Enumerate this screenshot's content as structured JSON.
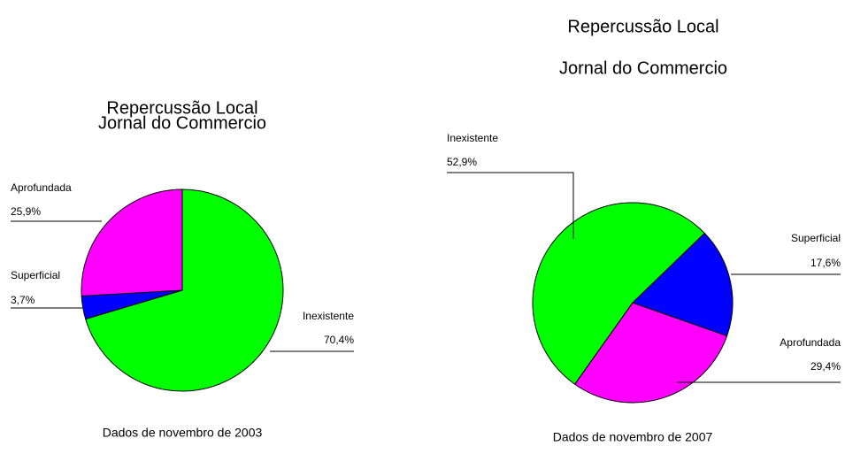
{
  "chart_data": [
    {
      "type": "pie",
      "title": "Repercussão Local",
      "subtitle": "Jornal do Commercio",
      "categories": [
        "Inexistente",
        "Superficial",
        "Aprofundada"
      ],
      "values": [
        70.4,
        3.7,
        25.9
      ],
      "value_labels": [
        "70,4%",
        "3,7%",
        "25,9%"
      ],
      "colors": [
        "#00ff00",
        "#0000ff",
        "#ff00ff"
      ],
      "note": "Dados de novembro de 2003"
    },
    {
      "type": "pie",
      "title": "Repercussão Local",
      "subtitle": "Jornal do Commercio",
      "categories": [
        "Superficial",
        "Aprofundada",
        "Inexistente"
      ],
      "values": [
        17.6,
        29.4,
        52.9
      ],
      "value_labels": [
        "17,6%",
        "29,4%",
        "52,9%"
      ],
      "colors": [
        "#0000ff",
        "#ff00ff",
        "#00ff00"
      ],
      "note": "Dados de novembro de 2007"
    }
  ]
}
